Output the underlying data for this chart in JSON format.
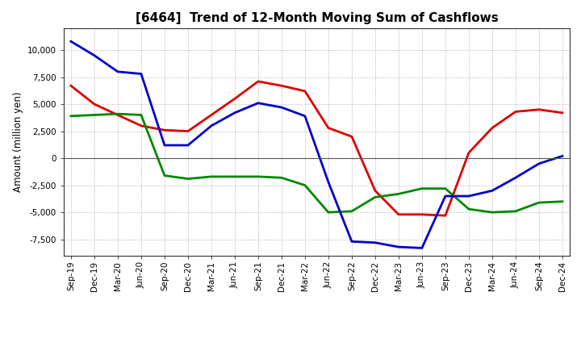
{
  "title": "[6464]  Trend of 12-Month Moving Sum of Cashflows",
  "ylabel": "Amount (million yen)",
  "background_color": "#ffffff",
  "plot_bg_color": "#ffffff",
  "grid_color": "#999999",
  "x_labels": [
    "Sep-19",
    "Dec-19",
    "Mar-20",
    "Jun-20",
    "Sep-20",
    "Dec-20",
    "Mar-21",
    "Jun-21",
    "Sep-21",
    "Dec-21",
    "Mar-22",
    "Jun-22",
    "Sep-22",
    "Dec-22",
    "Mar-23",
    "Jun-23",
    "Sep-23",
    "Dec-23",
    "Mar-24",
    "Jun-24",
    "Sep-24",
    "Dec-24"
  ],
  "operating_cashflow": [
    6700,
    5000,
    4000,
    3000,
    2600,
    2500,
    4000,
    5500,
    7100,
    6700,
    6200,
    2800,
    2000,
    -3000,
    -5200,
    -5200,
    -5300,
    500,
    2800,
    4300,
    4500,
    4200
  ],
  "investing_cashflow": [
    3900,
    4000,
    4100,
    4000,
    -1600,
    -1900,
    -1700,
    -1700,
    -1700,
    -1800,
    -2500,
    -5000,
    -4900,
    -3600,
    -3300,
    -2800,
    -2800,
    -4700,
    -5000,
    -4900,
    -4100,
    -4000
  ],
  "free_cashflow": [
    10800,
    9500,
    8000,
    7800,
    1200,
    1200,
    3000,
    4200,
    5100,
    4700,
    3900,
    -2200,
    -7700,
    -7800,
    -8200,
    -8300,
    -3500,
    -3500,
    -3000,
    -1800,
    -500,
    200
  ],
  "operating_color": "#dd0000",
  "investing_color": "#008800",
  "free_color": "#0000cc",
  "ylim": [
    -9000,
    12000
  ],
  "yticks": [
    -7500,
    -5000,
    -2500,
    0,
    2500,
    5000,
    7500,
    10000
  ],
  "line_width": 2.0,
  "title_fontsize": 11,
  "tick_fontsize": 7.5,
  "ylabel_fontsize": 8.5
}
